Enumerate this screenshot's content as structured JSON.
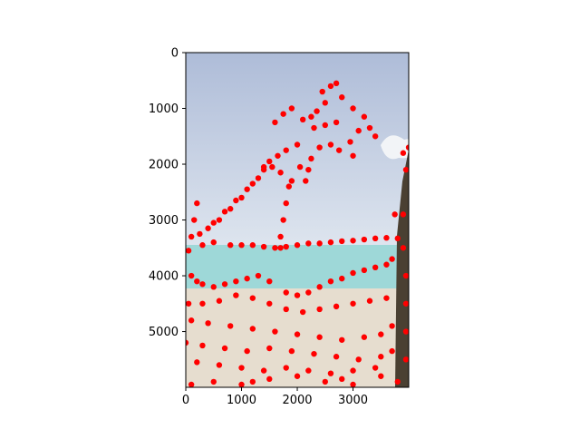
{
  "chart_data": {
    "type": "scatter",
    "background": "photo",
    "y_axis_inverted": true,
    "xlim": [
      0,
      3999
    ],
    "ylim": [
      5999,
      0
    ],
    "x_ticks": [
      0,
      1000,
      2000,
      3000
    ],
    "y_ticks": [
      0,
      1000,
      2000,
      3000,
      4000,
      5000
    ],
    "x_tick_labels": [
      "0",
      "1000",
      "2000",
      "3000"
    ],
    "y_tick_labels": [
      "0",
      "1000",
      "2000",
      "3000",
      "4000",
      "5000"
    ],
    "marker_color": "#ff0000",
    "photo_colors": {
      "sky_top": "#aebcd8",
      "sky_bottom": "#dfe6ef",
      "sea": "#9ed8d8",
      "sand": "#e6ddcf",
      "trunk": "#4a4032"
    },
    "series": [
      {
        "points": [
          [
            2450,
            700
          ],
          [
            2600,
            600
          ],
          [
            2700,
            550
          ],
          [
            2500,
            900
          ],
          [
            2350,
            1050
          ],
          [
            2250,
            1150
          ],
          [
            2100,
            1200
          ],
          [
            1900,
            1000
          ],
          [
            1750,
            1100
          ],
          [
            1600,
            1250
          ],
          [
            2800,
            800
          ],
          [
            3000,
            1000
          ],
          [
            3200,
            1150
          ],
          [
            3300,
            1350
          ],
          [
            3400,
            1500
          ],
          [
            3100,
            1400
          ],
          [
            2950,
            1600
          ],
          [
            3000,
            1850
          ],
          [
            2750,
            1750
          ],
          [
            2600,
            1650
          ],
          [
            2400,
            1700
          ],
          [
            2250,
            1900
          ],
          [
            2200,
            2100
          ],
          [
            2150,
            2300
          ],
          [
            2000,
            1650
          ],
          [
            1800,
            1750
          ],
          [
            1650,
            1850
          ],
          [
            1500,
            1950
          ],
          [
            1400,
            2050
          ],
          [
            2300,
            1350
          ],
          [
            2500,
            1300
          ],
          [
            2700,
            1250
          ],
          [
            2050,
            2050
          ],
          [
            1900,
            2300
          ],
          [
            1700,
            2150
          ],
          [
            1550,
            2050
          ],
          [
            1400,
            2100
          ],
          [
            1200,
            2350
          ],
          [
            1000,
            2600
          ],
          [
            800,
            2800
          ],
          [
            600,
            3000
          ],
          [
            400,
            3150
          ],
          [
            250,
            3250
          ],
          [
            1300,
            2250
          ],
          [
            1100,
            2450
          ],
          [
            900,
            2650
          ],
          [
            700,
            2850
          ],
          [
            500,
            3050
          ],
          [
            1850,
            2400
          ],
          [
            1800,
            2700
          ],
          [
            1750,
            3000
          ],
          [
            1700,
            3300
          ],
          [
            1700,
            3500
          ],
          [
            200,
            2700
          ],
          [
            150,
            3000
          ],
          [
            100,
            3300
          ],
          [
            50,
            3550
          ],
          [
            300,
            3450
          ],
          [
            500,
            3400
          ],
          [
            800,
            3450
          ],
          [
            1000,
            3450
          ],
          [
            1200,
            3450
          ],
          [
            1400,
            3480
          ],
          [
            1600,
            3500
          ],
          [
            1800,
            3480
          ],
          [
            2000,
            3450
          ],
          [
            2200,
            3420
          ],
          [
            2400,
            3420
          ],
          [
            2600,
            3400
          ],
          [
            2800,
            3380
          ],
          [
            3000,
            3370
          ],
          [
            3200,
            3350
          ],
          [
            3400,
            3330
          ],
          [
            3600,
            3320
          ],
          [
            3800,
            3330
          ],
          [
            3750,
            2900
          ],
          [
            3900,
            2900
          ],
          [
            3950,
            2100
          ],
          [
            3900,
            1800
          ],
          [
            4000,
            1700
          ],
          [
            100,
            4000
          ],
          [
            200,
            4100
          ],
          [
            300,
            4150
          ],
          [
            500,
            4200
          ],
          [
            700,
            4150
          ],
          [
            900,
            4100
          ],
          [
            1100,
            4050
          ],
          [
            1300,
            4000
          ],
          [
            1500,
            4100
          ],
          [
            1800,
            4300
          ],
          [
            2000,
            4350
          ],
          [
            2200,
            4300
          ],
          [
            2400,
            4200
          ],
          [
            2600,
            4100
          ],
          [
            2800,
            4050
          ],
          [
            3000,
            3950
          ],
          [
            3200,
            3900
          ],
          [
            3400,
            3850
          ],
          [
            3600,
            3800
          ],
          [
            3700,
            3700
          ],
          [
            50,
            4500
          ],
          [
            300,
            4500
          ],
          [
            600,
            4450
          ],
          [
            900,
            4350
          ],
          [
            1200,
            4400
          ],
          [
            1500,
            4500
          ],
          [
            1800,
            4600
          ],
          [
            2100,
            4650
          ],
          [
            2400,
            4600
          ],
          [
            2700,
            4550
          ],
          [
            3000,
            4500
          ],
          [
            3300,
            4450
          ],
          [
            3600,
            4400
          ],
          [
            100,
            4800
          ],
          [
            400,
            4850
          ],
          [
            800,
            4900
          ],
          [
            1200,
            4950
          ],
          [
            1600,
            5000
          ],
          [
            2000,
            5050
          ],
          [
            2400,
            5100
          ],
          [
            2800,
            5150
          ],
          [
            3200,
            5100
          ],
          [
            3500,
            5050
          ],
          [
            3700,
            4900
          ],
          [
            0,
            5200
          ],
          [
            300,
            5250
          ],
          [
            700,
            5300
          ],
          [
            1100,
            5350
          ],
          [
            1500,
            5300
          ],
          [
            1900,
            5350
          ],
          [
            2300,
            5400
          ],
          [
            2700,
            5450
          ],
          [
            3100,
            5500
          ],
          [
            3500,
            5450
          ],
          [
            3700,
            5350
          ],
          [
            200,
            5550
          ],
          [
            600,
            5600
          ],
          [
            1000,
            5650
          ],
          [
            1400,
            5700
          ],
          [
            1800,
            5650
          ],
          [
            2200,
            5700
          ],
          [
            2600,
            5750
          ],
          [
            3000,
            5700
          ],
          [
            3400,
            5650
          ],
          [
            500,
            5900
          ],
          [
            1000,
            5950
          ],
          [
            1500,
            5850
          ],
          [
            2000,
            5800
          ],
          [
            2500,
            5900
          ],
          [
            3000,
            5950
          ],
          [
            3500,
            5800
          ],
          [
            3800,
            5900
          ],
          [
            3950,
            5000
          ],
          [
            3950,
            5500
          ],
          [
            3950,
            4500
          ],
          [
            3950,
            4000
          ],
          [
            3900,
            3500
          ],
          [
            100,
            5950
          ],
          [
            1200,
            5900
          ],
          [
            2800,
            5850
          ]
        ]
      }
    ]
  }
}
